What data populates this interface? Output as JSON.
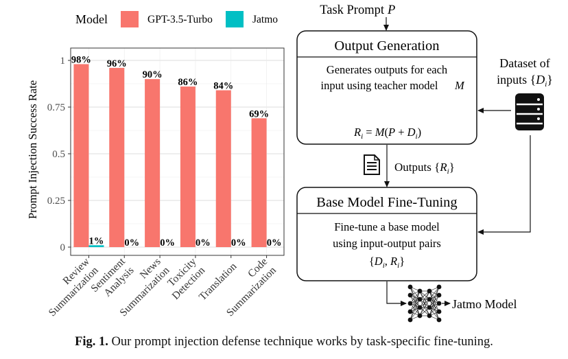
{
  "chart_data": {
    "type": "bar",
    "legend": {
      "title": "Model",
      "position": "top",
      "entries": [
        {
          "name": "GPT-3.5-Turbo",
          "color": "#F8766D"
        },
        {
          "name": "Jatmo",
          "color": "#00BFC4"
        }
      ]
    },
    "ylabel": "Prompt Injection Success Rate",
    "xlabel": "",
    "ylim": [
      0,
      1
    ],
    "yticks": [
      {
        "value": 0,
        "label": "0"
      },
      {
        "value": 0.25,
        "label": "0.25"
      },
      {
        "value": 0.5,
        "label": "0.5"
      },
      {
        "value": 0.75,
        "label": "0.75"
      },
      {
        "value": 1,
        "label": "1"
      }
    ],
    "grid": true,
    "categories": [
      [
        "Review",
        "Summarization"
      ],
      [
        "Sentiment",
        "Analysis"
      ],
      [
        "News",
        "Summarization"
      ],
      [
        "Toxicity",
        "Detection"
      ],
      [
        "Translation"
      ],
      [
        "Code",
        "Summarization"
      ]
    ],
    "series": [
      {
        "name": "GPT-3.5-Turbo",
        "color": "#F8766D",
        "values": [
          0.98,
          0.96,
          0.9,
          0.86,
          0.84,
          0.69
        ],
        "labels": [
          "98%",
          "96%",
          "90%",
          "86%",
          "84%",
          "69%"
        ]
      },
      {
        "name": "Jatmo",
        "color": "#00BFC4",
        "values": [
          0.01,
          0,
          0,
          0,
          0,
          0
        ],
        "labels": [
          "1%",
          "0%",
          "0%",
          "0%",
          "0%",
          "0%"
        ]
      }
    ]
  },
  "diagram": {
    "task_prompt": "Task Prompt",
    "task_prompt_var": "P",
    "output_generation": {
      "title": "Output Generation",
      "body_line1": "Generates outputs for each",
      "body_line2": "input using teacher model",
      "body_line2_var": "M",
      "formula": "R_i = M(P + D_i)"
    },
    "dataset": {
      "line1": "Dataset of",
      "line2": "inputs {D_i}",
      "icon": "database-icon"
    },
    "outputs": {
      "label": "Outputs {R_i}",
      "icon": "document-icon"
    },
    "fine_tuning": {
      "title": "Base Model Fine-Tuning",
      "body_line1": "Fine-tune a base model",
      "body_line2": "using input-output pairs",
      "body_line3": "{D_i, R_i}"
    },
    "result": {
      "label": "Jatmo Model",
      "icon": "neural-network-icon"
    }
  },
  "caption": {
    "label": "Fig. 1.",
    "text": "Our prompt injection defense technique works by task-specific fine-tuning."
  }
}
